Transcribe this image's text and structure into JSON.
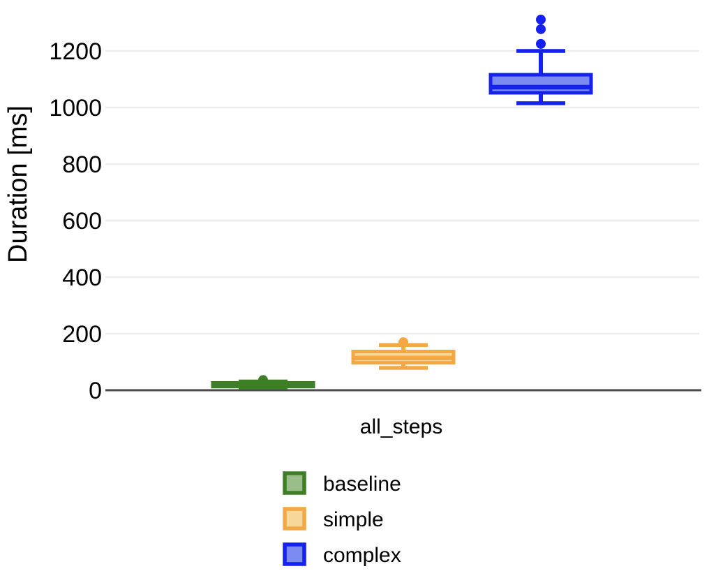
{
  "chart": {
    "background": "#ffffff",
    "grid_color": "#ededed",
    "axis_color": "#4a4a4a",
    "text_color": "#000000"
  },
  "chart_data": {
    "type": "boxplot",
    "title": "",
    "xlabel": "",
    "ylabel": "Duration [ms]",
    "categories": [
      "all_steps"
    ],
    "yticks": [
      0,
      200,
      400,
      600,
      800,
      1000,
      1200
    ],
    "ylim": [
      0,
      1345
    ],
    "grid": true,
    "legend_position": "bottom",
    "series": [
      {
        "name": "baseline",
        "color": "#3e7e26",
        "fill": "#9abd89",
        "whisker_low": 9,
        "q1": 13,
        "median": 20,
        "q3": 26,
        "whisker_high": 31,
        "outliers": [
          36
        ]
      },
      {
        "name": "simple",
        "color": "#f2a845",
        "fill": "#f8d79b",
        "whisker_low": 79,
        "q1": 97,
        "median": 114,
        "q3": 137,
        "whisker_high": 160,
        "outliers": [
          170
        ]
      },
      {
        "name": "complex",
        "color": "#1522ee",
        "fill": "#7b8bf2",
        "whisker_low": 1015,
        "q1": 1052,
        "median": 1072,
        "q3": 1116,
        "whisker_high": 1200,
        "outliers": [
          1225,
          1277,
          1311
        ]
      }
    ]
  }
}
